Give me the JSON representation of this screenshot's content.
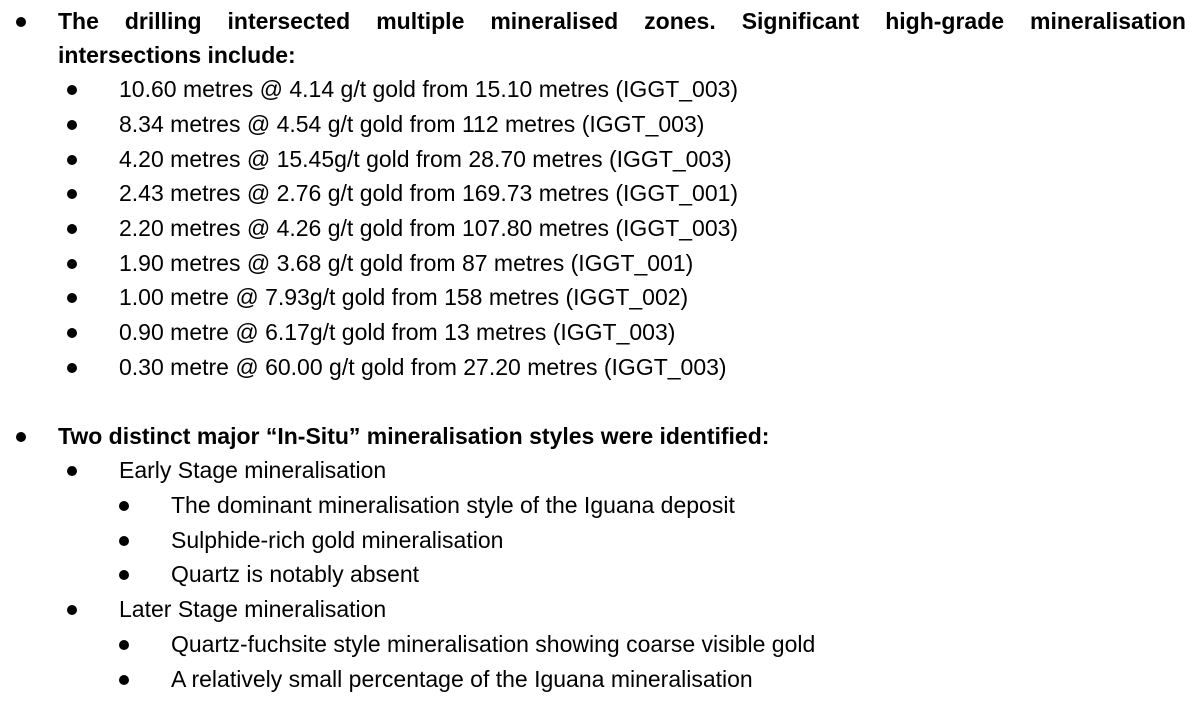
{
  "section1": {
    "heading_line1": "The drilling intersected multiple mineralised zones. Significant high-grade mineralisation",
    "heading_line2": "intersections include:",
    "items": [
      "10.60 metres @ 4.14 g/t gold from 15.10 metres (IGGT_003)",
      "8.34 metres @ 4.54 g/t gold from 112 metres (IGGT_003)",
      "4.20 metres @ 15.45g/t gold from 28.70 metres (IGGT_003)",
      "2.43 metres @ 2.76 g/t gold from 169.73 metres (IGGT_001)",
      "2.20 metres @ 4.26 g/t gold from 107.80 metres (IGGT_003)",
      "1.90 metres @ 3.68 g/t gold from 87 metres (IGGT_001)",
      "1.00 metre @ 7.93g/t gold from 158 metres (IGGT_002)",
      "0.90 metre @ 6.17g/t gold from 13 metres (IGGT_003)",
      "0.30 metre @ 60.00 g/t gold from 27.20 metres (IGGT_003)"
    ]
  },
  "section2": {
    "heading": "Two distinct major “In-Situ” mineralisation styles were identified:",
    "early": {
      "label": "Early Stage mineralisation",
      "items": [
        "The dominant mineralisation style of the Iguana deposit",
        "Sulphide-rich gold mineralisation",
        "Quartz is notably absent"
      ]
    },
    "later": {
      "label": "Later Stage mineralisation",
      "items": [
        "Quartz-fuchsite style mineralisation showing coarse visible gold",
        "A relatively small percentage of the Iguana mineralisation"
      ]
    }
  }
}
